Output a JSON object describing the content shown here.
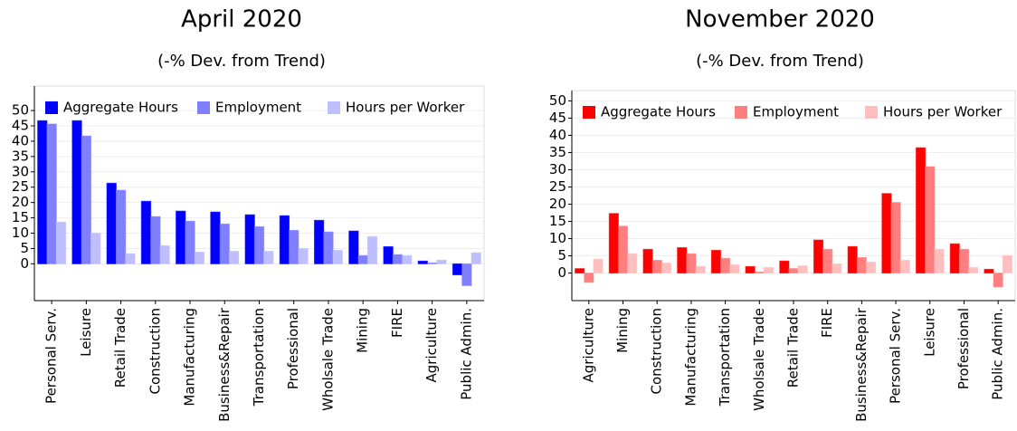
{
  "chart_data": [
    {
      "type": "bar",
      "title": "April 2020",
      "subtitle": "(-% Dev. from Trend)",
      "categories": [
        "Personal Serv.",
        "Leisure",
        "Retail Trade",
        "Construction",
        "Manufacturing",
        "Business&Repair",
        "Transportation",
        "Professional",
        "Wholsale Trade",
        "Mining",
        "FIRE",
        "Agriculture",
        "Public Admin."
      ],
      "series": [
        {
          "name": "Aggregate Hours",
          "color": "#0000ff",
          "values": [
            46.7,
            46.7,
            26.3,
            20.4,
            17.2,
            16.9,
            16,
            15.7,
            14.2,
            10.7,
            5.6,
            0.9,
            -3.6
          ]
        },
        {
          "name": "Employment",
          "color": "#7f7fff",
          "values": [
            45.6,
            41.7,
            24,
            15.4,
            13.9,
            13,
            12.1,
            10.9,
            10.4,
            2.7,
            3,
            0.3,
            -7.1
          ]
        },
        {
          "name": "Hours per Worker",
          "color": "#bfbfff",
          "values": [
            13.6,
            10,
            3.3,
            5.9,
            3.8,
            4.1,
            4.1,
            5,
            4.4,
            8.9,
            2.7,
            1.2,
            3.6
          ]
        }
      ],
      "ylim": [
        -12,
        58
      ],
      "yticks": [
        0,
        5,
        10,
        15,
        20,
        25,
        30,
        35,
        40,
        45,
        50
      ],
      "grid": true,
      "legend": "top"
    },
    {
      "type": "bar",
      "title": "November 2020",
      "subtitle": "(-% Dev. from Trend)",
      "categories": [
        "Agriculture",
        "Mining",
        "Construction",
        "Manufacturing",
        "Transportation",
        "Wholsale Trade",
        "Retail Trade",
        "FIRE",
        "Business&Repair",
        "Personal Serv.",
        "Leisure",
        "Professional",
        "Public Admin."
      ],
      "series": [
        {
          "name": "Aggregate Hours",
          "color": "#ff0000",
          "values": [
            1.3,
            17.3,
            6.9,
            7.4,
            6.6,
            1.9,
            3.5,
            9.6,
            7.7,
            23.1,
            36.4,
            8.5,
            1.1
          ]
        },
        {
          "name": "Employment",
          "color": "#ff7f7f",
          "values": [
            -2.7,
            13.6,
            3.7,
            5.6,
            4.3,
            0.3,
            1.3,
            6.9,
            4.5,
            20.5,
            30.9,
            6.9,
            -4
          ]
        },
        {
          "name": "Hours per Worker",
          "color": "#ffbfbf",
          "values": [
            4,
            5.6,
            2.9,
            1.9,
            2.4,
            1.6,
            2.1,
            2.7,
            3.2,
            3.7,
            6.9,
            1.6,
            5.1
          ]
        }
      ],
      "ylim": [
        -8,
        53
      ],
      "yticks": [
        0,
        5,
        10,
        15,
        20,
        25,
        30,
        35,
        40,
        45,
        50
      ],
      "grid": true,
      "legend": "top"
    }
  ]
}
